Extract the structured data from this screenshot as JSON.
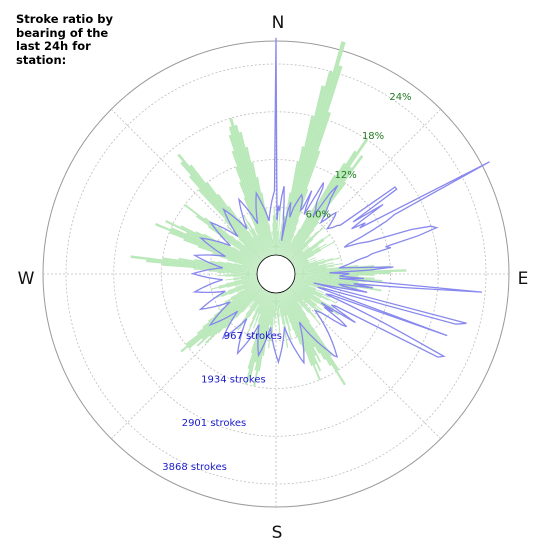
{
  "title": "Stroke ratio by\nbearing of the\nlast 24h for\nstation:",
  "chart_data": {
    "type": "polar",
    "compass_labels": [
      "N",
      "E",
      "S",
      "W"
    ],
    "percent_ring_labels": [
      "6.0%",
      "12%",
      "18%",
      "24%"
    ],
    "percent_ring_values": [
      6,
      12,
      18,
      24
    ],
    "stroke_ring_labels": [
      "967 strokes",
      "1934 strokes",
      "2901 strokes",
      "3868 strokes"
    ],
    "stroke_ring_values": [
      967,
      1934,
      2901,
      3868
    ],
    "bearing_step_deg": 5,
    "series": [
      {
        "kind": "ratio_percent",
        "color": "#b9e8b9",
        "values": [
          4,
          5,
          3,
          6,
          2,
          3,
          6,
          4,
          5,
          8,
          12,
          14,
          18,
          22,
          24,
          28,
          25,
          19,
          14,
          9,
          7,
          5,
          4,
          3,
          2,
          3,
          4,
          6,
          8,
          12,
          14,
          16,
          18,
          14,
          16,
          12,
          8,
          6,
          5,
          4,
          3,
          4,
          5,
          6,
          4,
          3,
          2,
          3,
          2,
          3,
          5,
          6,
          5,
          4,
          3,
          4,
          5,
          4,
          6,
          4,
          3,
          2,
          2,
          2,
          3,
          2,
          2,
          3,
          2,
          4,
          3,
          5,
          6,
          4,
          3,
          5,
          4,
          6,
          5,
          4,
          8,
          10,
          12,
          10,
          14,
          12,
          10,
          8,
          10,
          11,
          9,
          8,
          10,
          9,
          11,
          8,
          7,
          6,
          4,
          3,
          4,
          5,
          4,
          3,
          2,
          3,
          4,
          3,
          5,
          4,
          6,
          5,
          4,
          3,
          4,
          6,
          5,
          7,
          6,
          4,
          3,
          4,
          5,
          4,
          6,
          5,
          4,
          3,
          2,
          3,
          4,
          5,
          6,
          4,
          3,
          2,
          3,
          4,
          5,
          10,
          12,
          14,
          11,
          10,
          9,
          8,
          10,
          9,
          11,
          10,
          12,
          10,
          8,
          7,
          6,
          5,
          4,
          3,
          5,
          6,
          4,
          3,
          5,
          7,
          4,
          3,
          2,
          3,
          5,
          4,
          3,
          2,
          3,
          4,
          3,
          5,
          6,
          7,
          4,
          5,
          8,
          10,
          12,
          10,
          9,
          11,
          12,
          10,
          8,
          6,
          5,
          4,
          3,
          5,
          4,
          3,
          6,
          5,
          4,
          3,
          2,
          3,
          4,
          5,
          6,
          5,
          4,
          3,
          2,
          3,
          2,
          4,
          5,
          7,
          8,
          10,
          9,
          11,
          10,
          12,
          13,
          12,
          10,
          9,
          8,
          7,
          6,
          5,
          4,
          6,
          5,
          4,
          3,
          2,
          3,
          4,
          5,
          6,
          5,
          4,
          3,
          2,
          3,
          4,
          5,
          6,
          5,
          4,
          3,
          2,
          3,
          4,
          3,
          2,
          3,
          4,
          5,
          4,
          3,
          5,
          6,
          8,
          12,
          14,
          16,
          12,
          10,
          8,
          6,
          5,
          4,
          3,
          2,
          4,
          5,
          6,
          8,
          10,
          12,
          14,
          12,
          10,
          13,
          11,
          9,
          8,
          6,
          5,
          4,
          3,
          5,
          8,
          10,
          12,
          9,
          7,
          5,
          4,
          3,
          4,
          6,
          5,
          7,
          12,
          14,
          16,
          17,
          15,
          12,
          10,
          8,
          6,
          4,
          3,
          5,
          4,
          6,
          5,
          4,
          3,
          4,
          6,
          8,
          10,
          12,
          14,
          16,
          17,
          18,
          17,
          16,
          14,
          12,
          10,
          8,
          6,
          4,
          3,
          2,
          3,
          4,
          5,
          6,
          5
        ]
      },
      {
        "kind": "stroke_count",
        "color": "#8888ee",
        "values": [
          4400,
          700,
          1000,
          900,
          1200,
          1400,
          1100,
          800,
          700,
          300,
          900,
          1100,
          900,
          800,
          1000,
          1100,
          1200,
          1300,
          1250,
          1150,
          1000,
          1050,
          1450,
          1100,
          950,
          1250,
          1700,
          1600,
          1300,
          1200,
          1150,
          1000,
          1600,
          1800,
          1500,
          1400,
          1300,
          1200,
          1100,
          1000,
          1100,
          1250,
          1350,
          1300,
          1200,
          1100,
          1000,
          1050,
          1100,
          1200,
          1250,
          2600,
          2600,
          1500,
          2200,
          1650,
          1400,
          1700,
          1550,
          4500,
          2300,
          2100,
          1800,
          1500,
          1200,
          1100,
          1400,
          1600,
          2500,
          2900,
          3000,
          2600,
          1900,
          2000,
          1600,
          1500,
          1300,
          1200,
          1100,
          1000,
          900,
          1300,
          2000,
          1500,
          700,
          1100,
          1000,
          900,
          1400,
          900,
          3800,
          2200,
          1200,
          1600,
          900,
          1000,
          1500,
          800,
          400,
          3600,
          3400,
          700,
          500,
          1100,
          3300,
          800,
          700,
          1200,
          1800,
          2500,
          3400,
          3300,
          1000,
          900,
          1100,
          1500,
          700,
          1000,
          800,
          1200,
          1400,
          1300,
          1100,
          900,
          800,
          750,
          700,
          800,
          900,
          1000,
          1100,
          1200,
          1300,
          1400,
          1500,
          1600,
          1700,
          1650,
          1500,
          1400,
          1300,
          1200,
          1100,
          1000,
          900,
          800,
          700,
          800,
          900,
          1000,
          1100,
          1200,
          1300,
          1400,
          1500,
          1400,
          1300,
          1200,
          1100,
          1000,
          900,
          800,
          700,
          800,
          900,
          1000,
          1100,
          1200,
          1300,
          1400,
          1300,
          1200,
          1100,
          1000,
          900,
          800,
          700,
          800,
          900,
          1000,
          1100,
          1200,
          1300,
          1200,
          1100,
          1000,
          900,
          800,
          700,
          800,
          900,
          1000,
          1100,
          1200,
          1300,
          1400,
          1300,
          1200,
          1100,
          1000,
          900,
          800,
          700,
          800,
          900,
          1000,
          1100,
          1200,
          1300,
          1200,
          1100,
          1000,
          900,
          800,
          700,
          800,
          900,
          1000,
          1100,
          1200,
          1300,
          1200,
          1100,
          1000,
          900,
          800,
          700,
          800,
          900,
          1000,
          1100,
          1200,
          1300,
          1200,
          1100,
          1000,
          900,
          800,
          700,
          800,
          900,
          1000,
          1100,
          1200,
          1300,
          1200,
          1100,
          1000,
          900,
          800,
          700,
          800,
          900,
          1000,
          1100,
          1200,
          1300,
          1200,
          1100,
          1000,
          900,
          800,
          700,
          800,
          900,
          1000,
          1100,
          1200,
          1300,
          1200,
          1100,
          1000,
          900,
          800,
          700,
          800,
          900,
          1000,
          1100,
          1200,
          1300,
          1200,
          1100,
          1000,
          900,
          800,
          700,
          800,
          900,
          1000,
          1100,
          1200,
          1300,
          1200,
          1100,
          1000,
          900,
          800,
          700,
          800,
          900,
          1000,
          1100,
          1200,
          1300,
          1200,
          1100,
          1000,
          900,
          800,
          700,
          800,
          900,
          1000,
          1100,
          1200,
          1300,
          1200,
          1100,
          1000,
          900,
          800,
          700,
          800,
          900,
          1000,
          1100,
          1200,
          1300,
          1200,
          1100,
          1000,
          900,
          800,
          700,
          800,
          900,
          1000,
          1100,
          1200,
          1300
        ]
      }
    ],
    "grid": true
  }
}
